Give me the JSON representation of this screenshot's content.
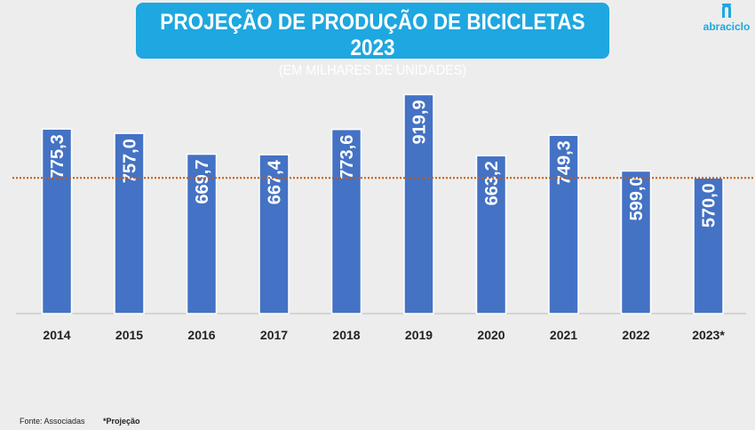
{
  "chart_data": {
    "type": "bar",
    "title": "PROJEÇÃO DE PRODUÇÃO DE BICICLETAS 2023",
    "subtitle": "(EM MILHARES DE UNIDADES)",
    "categories": [
      "2014",
      "2015",
      "2016",
      "2017",
      "2018",
      "2019",
      "2020",
      "2021",
      "2022",
      "2023*"
    ],
    "values": [
      775.3,
      757.0,
      669.7,
      667.4,
      773.6,
      919.9,
      663.2,
      749.3,
      599.0,
      570.0
    ],
    "value_labels": [
      "775,3",
      "757,0",
      "669,7",
      "667,4",
      "773,6",
      "919,9",
      "663,2",
      "749,3",
      "599,0",
      "570,0"
    ],
    "reference_line": 570.0,
    "ylim": [
      0,
      1000
    ],
    "xlabel": "",
    "ylabel": "",
    "grid": false,
    "colors": {
      "bar": "#4472c4",
      "reference": "#c55a11",
      "title_bg": "#1ea7e0"
    }
  },
  "logo": {
    "text": "abraciclo"
  },
  "footer": {
    "source": "Fonte: Associadas",
    "note": "*Projeção"
  }
}
